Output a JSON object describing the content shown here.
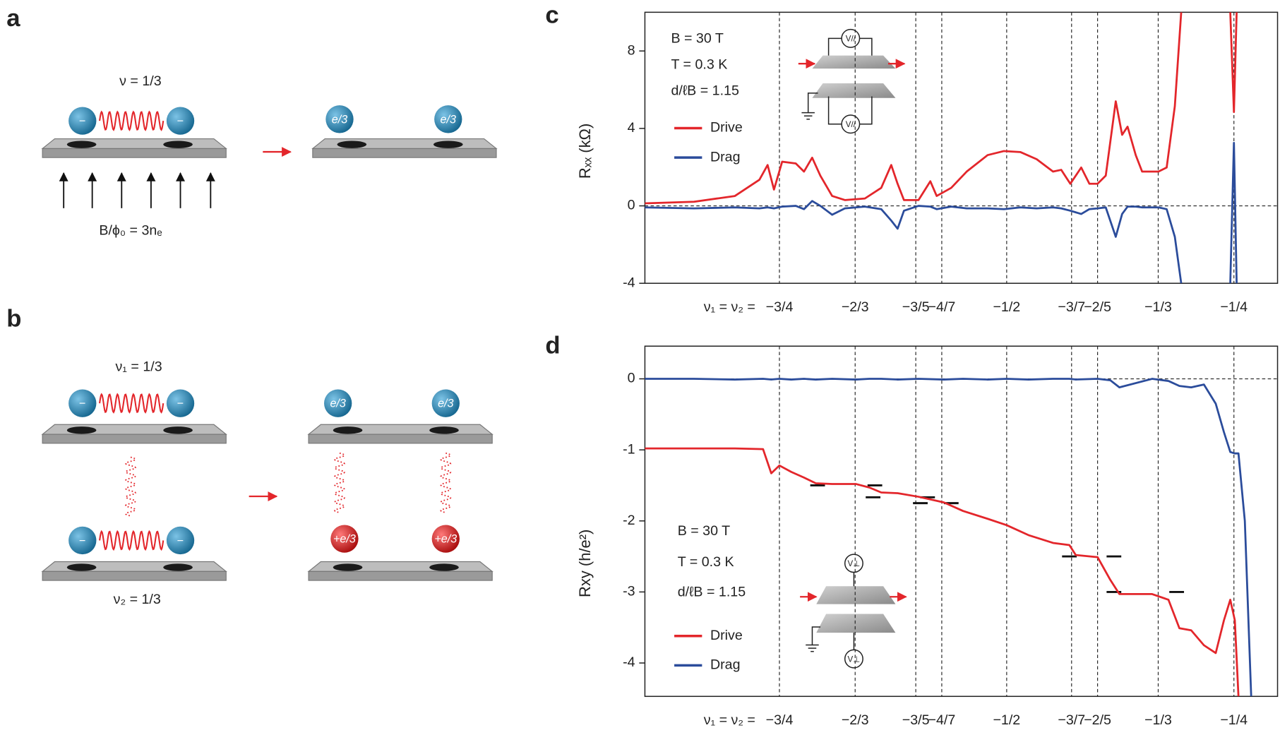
{
  "diagrams": {
    "a": {
      "label": "a",
      "nu": "ν = 1/3",
      "charge": "−",
      "quasi": "e/3",
      "field": "B/ϕ₀ = 3nₑ"
    },
    "b": {
      "label": "b",
      "nu1": "ν₁ = 1/3",
      "nu2": "ν₂ = 1/3",
      "charge": "−",
      "quasi": "e/3",
      "hole": "+e/3"
    }
  },
  "chart_data": [
    {
      "type": "line",
      "panel_label": "c",
      "ylabel": "Rₓₓ (kΩ)",
      "xlabel": "ν₁ = ν₂ =",
      "annotations": [
        "B = 30 T",
        "T = 0.3 K",
        "d/ℓB = 1.15"
      ],
      "inset_labels": [
        "V//",
        "V//"
      ],
      "x": [
        -0.898,
        -0.844,
        -0.799,
        -0.772,
        -0.763,
        -0.756,
        -0.747,
        -0.732,
        -0.723,
        -0.714,
        -0.705,
        -0.692,
        -0.678,
        -0.656,
        -0.638,
        -0.627,
        -0.62,
        -0.613,
        -0.597,
        -0.584,
        -0.577,
        -0.561,
        -0.544,
        -0.521,
        -0.503,
        -0.485,
        -0.467,
        -0.449,
        -0.44,
        -0.43,
        -0.418,
        -0.409,
        -0.4,
        -0.391,
        -0.38,
        -0.373,
        -0.367,
        -0.358,
        -0.351,
        -0.333,
        -0.324,
        -0.315,
        -0.308,
        -0.279,
        -0.254,
        -0.25,
        -0.247
      ],
      "series": [
        {
          "name": "Drive",
          "color": "#e3262b",
          "values": [
            0.13,
            0.21,
            0.51,
            1.35,
            2.11,
            0.84,
            2.28,
            2.19,
            1.77,
            2.49,
            1.56,
            0.51,
            0.3,
            0.38,
            0.93,
            2.11,
            1.14,
            0.3,
            0.3,
            1.27,
            0.51,
            0.93,
            1.77,
            2.62,
            2.83,
            2.78,
            2.41,
            1.77,
            1.86,
            1.14,
            1.98,
            1.14,
            1.14,
            1.56,
            5.4,
            3.67,
            4.09,
            2.62,
            1.77,
            1.77,
            1.98,
            5.15,
            10,
            null,
            10,
            4.85,
            10
          ]
        },
        {
          "name": "Drag",
          "color": "#2b4c9b",
          "values": [
            -0.08,
            -0.13,
            -0.08,
            -0.13,
            -0.08,
            -0.13,
            -0.04,
            0,
            -0.17,
            0.25,
            0,
            -0.46,
            -0.13,
            -0.04,
            -0.17,
            -0.76,
            -1.18,
            -0.25,
            0,
            -0.04,
            -0.17,
            -0.04,
            -0.13,
            -0.13,
            -0.17,
            -0.08,
            -0.13,
            -0.08,
            -0.13,
            -0.25,
            -0.42,
            -0.17,
            -0.13,
            -0.08,
            -1.6,
            -0.42,
            -0.04,
            -0.04,
            -0.08,
            -0.08,
            -0.17,
            -1.6,
            -4,
            null,
            -4,
            3.25,
            -4
          ]
        }
      ],
      "xlim": [
        -0.898,
        -0.202
      ],
      "ylim": [
        -4,
        10
      ],
      "xticks": [
        {
          "value": -0.75,
          "label": "−3/4"
        },
        {
          "value": -0.6667,
          "label": "−2/3"
        },
        {
          "value": -0.6,
          "label": "−3/5"
        },
        {
          "value": -0.5714,
          "label": "−4/7"
        },
        {
          "value": -0.5,
          "label": "−1/2"
        },
        {
          "value": -0.4286,
          "label": "−3/7"
        },
        {
          "value": -0.4,
          "label": "−2/5"
        },
        {
          "value": -0.3333,
          "label": "−1/3"
        },
        {
          "value": -0.25,
          "label": "−1/4"
        }
      ],
      "yticks": [
        -4,
        0,
        4,
        8
      ],
      "hlines": [
        0
      ]
    },
    {
      "type": "line",
      "panel_label": "d",
      "ylabel": "Rxy (h/e²)",
      "xlabel": "ν₁ = ν₂ =",
      "annotations": [
        "B = 30 T",
        "T = 0.3 K",
        "d/ℓB = 1.15"
      ],
      "inset_labels": [
        "V⊥",
        "V⊥"
      ],
      "x": [
        -0.898,
        -0.844,
        -0.799,
        -0.768,
        -0.759,
        -0.75,
        -0.737,
        -0.723,
        -0.71,
        -0.692,
        -0.666,
        -0.651,
        -0.638,
        -0.62,
        -0.597,
        -0.569,
        -0.548,
        -0.521,
        -0.5,
        -0.476,
        -0.449,
        -0.431,
        -0.424,
        -0.4,
        -0.386,
        -0.376,
        -0.34,
        -0.322,
        -0.31,
        -0.297,
        -0.283,
        -0.27,
        -0.261,
        -0.254,
        -0.249,
        -0.245,
        -0.238,
        -0.231
      ],
      "series": [
        {
          "name": "Drive",
          "color": "#e3262b",
          "values": [
            -0.98,
            -0.98,
            -0.98,
            -0.99,
            -1.33,
            -1.22,
            -1.31,
            -1.39,
            -1.47,
            -1.48,
            -1.48,
            -1.53,
            -1.6,
            -1.61,
            -1.66,
            -1.74,
            -1.86,
            -1.97,
            -2.06,
            -2.2,
            -2.31,
            -2.34,
            -2.48,
            -2.51,
            -2.83,
            -3.03,
            -3.03,
            -3.11,
            -3.51,
            -3.54,
            -3.75,
            -3.86,
            -3.4,
            -3.11,
            -3.4,
            -4.47,
            null,
            null
          ]
        },
        {
          "name": "Drag",
          "color": "#2b4c9b",
          "values": [
            0,
            0,
            -0.01,
            0,
            -0.01,
            0,
            -0.01,
            0,
            -0.01,
            0,
            -0.01,
            0,
            0,
            -0.01,
            0,
            -0.01,
            0,
            -0.01,
            0,
            -0.01,
            0,
            0,
            -0.01,
            0,
            -0.02,
            -0.12,
            0,
            -0.03,
            -0.1,
            -0.12,
            -0.08,
            -0.35,
            -0.75,
            -1.03,
            -1.05,
            -1.05,
            -2,
            -4.47
          ]
        }
      ],
      "xlim": [
        -0.898,
        -0.202
      ],
      "ylim": [
        -4.47,
        0.46
      ],
      "xticks": [
        {
          "value": -0.75,
          "label": "−3/4"
        },
        {
          "value": -0.6667,
          "label": "−2/3"
        },
        {
          "value": -0.6,
          "label": "−3/5"
        },
        {
          "value": -0.5714,
          "label": "−4/7"
        },
        {
          "value": -0.5,
          "label": "−1/2"
        },
        {
          "value": -0.4286,
          "label": "−3/7"
        },
        {
          "value": -0.4,
          "label": "−2/5"
        },
        {
          "value": -0.3333,
          "label": "−1/3"
        },
        {
          "value": -0.25,
          "label": "−1/4"
        }
      ],
      "yticks": [
        -4,
        -3,
        -2,
        -1,
        0
      ],
      "hlines": [
        0
      ],
      "reference_marks": [
        {
          "value": -1.5,
          "x": [
            -0.708,
            -0.645
          ]
        },
        {
          "value": -1.667,
          "x": [
            -0.647,
            -0.587
          ]
        },
        {
          "value": -1.75,
          "x": [
            -0.595,
            -0.561
          ]
        },
        {
          "value": -2.5,
          "x": [
            -0.431,
            -0.382
          ]
        },
        {
          "value": -3,
          "x": [
            -0.382,
            -0.313
          ]
        }
      ]
    }
  ]
}
